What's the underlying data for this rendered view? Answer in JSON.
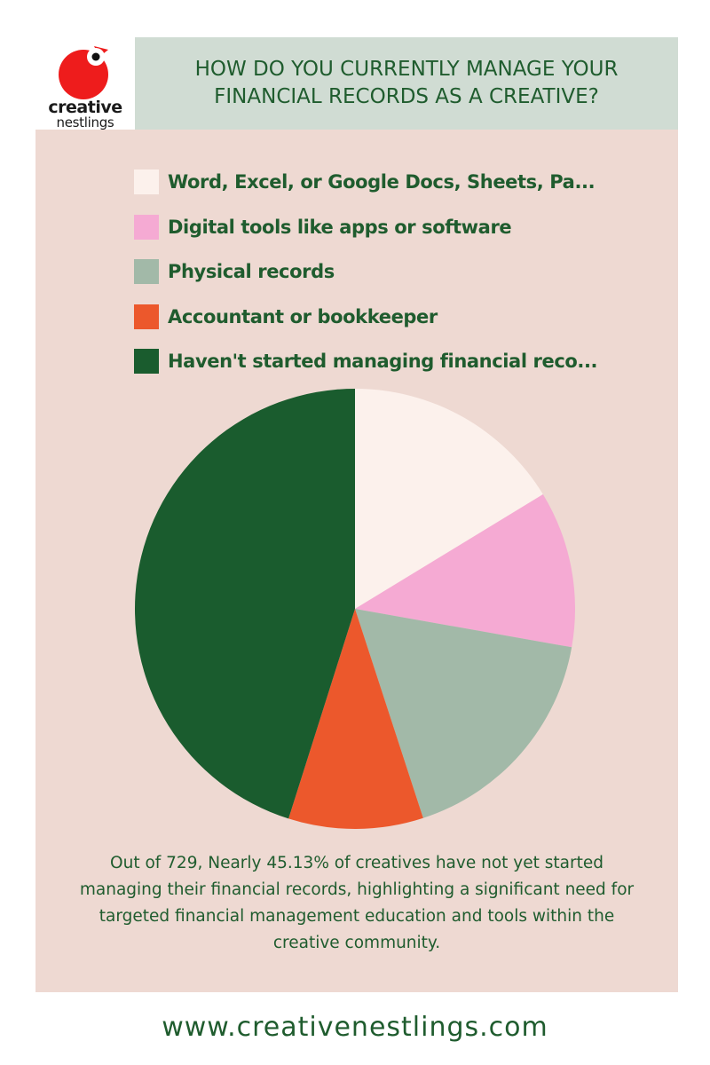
{
  "brand": {
    "logo_word1": "creative",
    "logo_word2": "nestlings",
    "logo_color": "#ee1c1c",
    "website": "www.creativenestlings.com"
  },
  "chart_data": {
    "type": "pie",
    "title": "HOW DO YOU CURRENTLY MANAGE YOUR\nFINANCIAL RECORDS AS A CREATIVE?",
    "categories": [
      "Word, Excel, or Google Docs, Sheets, Pa...",
      "Digital tools like apps or software",
      "Physical records",
      "Accountant or bookkeeper",
      "Haven't started managing financial reco..."
    ],
    "values": [
      16.3,
      11.5,
      17.2,
      9.9,
      45.13
    ],
    "colors": [
      "#fcf1ec",
      "#f5aad3",
      "#a2b9a8",
      "#ec582c",
      "#1a5c2e"
    ],
    "start_angle_deg": 0,
    "direction": "clockwise",
    "legend_position": "top"
  },
  "footnote": "Out of 729, Nearly 45.13% of creatives have not yet started managing their financial records, highlighting a significant need for targeted financial management education and tools within the creative community."
}
